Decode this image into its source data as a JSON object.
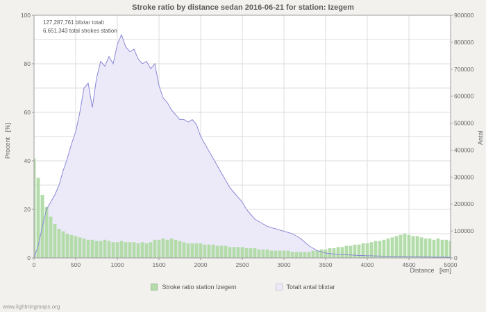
{
  "watermark": "www.lightningmaps.org",
  "colors": {
    "grid": "#dcdcdc",
    "axis": "#9c9c9c",
    "text": "#666666",
    "background": "#f2f1ee",
    "plot_background": "#ffffff"
  },
  "chart_data": {
    "type": "mixed",
    "title": "Stroke ratio by distance sedan 2016-06-21 for station: Izegem",
    "x_label": "Distance   [km]",
    "y_left_label": "Procent   [%]",
    "y_right_label": "Antal",
    "x_range": [
      0,
      5000
    ],
    "y_left_range": [
      0,
      100
    ],
    "y_right_range": [
      0,
      900000
    ],
    "x_tick_step": 500,
    "y_left_tick_step": 20,
    "y_left_grid_step": 10,
    "y_right_tick_step": 100000,
    "grid": true,
    "legend_position": "bottom",
    "annotations": [
      "127,287,761 blixtar totalt",
      "6,651,343 total strokes station"
    ],
    "x": [
      0,
      50,
      100,
      150,
      200,
      250,
      300,
      350,
      400,
      450,
      500,
      550,
      600,
      650,
      700,
      750,
      800,
      850,
      900,
      950,
      1000,
      1050,
      1100,
      1150,
      1200,
      1250,
      1300,
      1350,
      1400,
      1450,
      1500,
      1550,
      1600,
      1650,
      1700,
      1750,
      1800,
      1850,
      1900,
      1950,
      2000,
      2050,
      2100,
      2150,
      2200,
      2250,
      2300,
      2350,
      2400,
      2450,
      2500,
      2550,
      2600,
      2650,
      2700,
      2750,
      2800,
      2850,
      2900,
      2950,
      3000,
      3050,
      3100,
      3150,
      3200,
      3250,
      3300,
      3350,
      3400,
      3450,
      3500,
      3550,
      3600,
      3650,
      3700,
      3750,
      3800,
      3850,
      3900,
      3950,
      4000,
      4050,
      4100,
      4150,
      4200,
      4250,
      4300,
      4350,
      4400,
      4450,
      4500,
      4550,
      4600,
      4650,
      4700,
      4750,
      4800,
      4850,
      4900,
      4950,
      5000
    ],
    "series": [
      {
        "name": "Stroke ratio station Izegem",
        "type": "bar",
        "axis": "left",
        "unit": "percent",
        "color": "#b3dcaa",
        "values": [
          41,
          33,
          26,
          21,
          17,
          14,
          12,
          11,
          10,
          9.5,
          9,
          8.5,
          8,
          7.5,
          7.5,
          7,
          7,
          7.5,
          7,
          6.5,
          6.5,
          7,
          6.5,
          6.5,
          6.5,
          6,
          6.5,
          6,
          6.5,
          7.5,
          7.5,
          8,
          7.5,
          8,
          7.5,
          7,
          6.5,
          6,
          6,
          6,
          6,
          5.5,
          5.5,
          5.5,
          5,
          5,
          5,
          4.5,
          4.5,
          4.5,
          4.5,
          4,
          4,
          4,
          3.5,
          3.5,
          3.5,
          3,
          3,
          3,
          3,
          3,
          2.5,
          2.5,
          2.5,
          2.5,
          2.5,
          3,
          3,
          3.5,
          3.5,
          4,
          4,
          4.5,
          4.5,
          5,
          5,
          5.5,
          5.5,
          6,
          6,
          6.5,
          7,
          7,
          7.5,
          8,
          8.5,
          9,
          9.5,
          10,
          9.5,
          9,
          9,
          8.5,
          8,
          8,
          7.5,
          8,
          7.5,
          7.5,
          7
        ]
      },
      {
        "name": "Totalt antal blixtar",
        "type": "area-line",
        "axis": "right",
        "unit": "strokes",
        "color": "#8a88d6",
        "fill": "#eceaf8",
        "values": [
          0,
          45000,
          117000,
          180000,
          207000,
          234000,
          270000,
          324000,
          369000,
          423000,
          468000,
          540000,
          630000,
          648000,
          558000,
          666000,
          729000,
          711000,
          747000,
          720000,
          792000,
          828000,
          783000,
          765000,
          774000,
          738000,
          720000,
          729000,
          702000,
          720000,
          639000,
          594000,
          576000,
          549000,
          531000,
          513000,
          513000,
          504000,
          513000,
          495000,
          450000,
          423000,
          396000,
          369000,
          342000,
          315000,
          288000,
          261000,
          243000,
          225000,
          207000,
          180000,
          162000,
          144000,
          135000,
          126000,
          117000,
          112500,
          108000,
          103500,
          99000,
          94500,
          90000,
          81000,
          72000,
          58500,
          45000,
          36000,
          27000,
          22500,
          18000,
          16200,
          14400,
          13500,
          12600,
          11700,
          10800,
          9900,
          9000,
          9000,
          8100,
          8100,
          7200,
          7200,
          6300,
          6300,
          6300,
          5400,
          5400,
          5400,
          4500,
          4500,
          4500,
          3600,
          3600,
          3600,
          2700,
          2700,
          2700,
          2700,
          1800
        ]
      }
    ]
  }
}
